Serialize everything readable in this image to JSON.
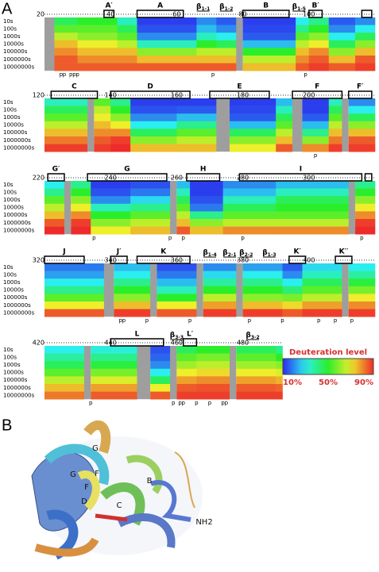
{
  "panel_a": {
    "label": "A",
    "time_points": [
      "10s",
      "100s",
      "1000s",
      "10000s",
      "100000s",
      "1000000s",
      "10000000s"
    ],
    "proline_label": "p",
    "colorbar": {
      "title": "Deuteration level",
      "lim": [
        10,
        90
      ],
      "ticks": [
        {
          "value": 10,
          "label": "10%"
        },
        {
          "value": 50,
          "label": "50%"
        },
        {
          "value": 90,
          "label": "90%"
        }
      ]
    },
    "rows": [
      {
        "xlim": [
          20,
          120
        ],
        "xticks": [
          20,
          40,
          60,
          80,
          100
        ],
        "elements": [
          {
            "label": "A′",
            "from": 38,
            "to": 41
          },
          {
            "label": "A",
            "from": 48,
            "to": 62
          },
          {
            "label": "β",
            "sub": "1-1",
            "at": 68
          },
          {
            "label": "β",
            "sub": "1-2",
            "at": 75
          },
          {
            "label": "B",
            "from": 80,
            "to": 94
          },
          {
            "label": "β",
            "sub": "1-5",
            "at": 97
          },
          {
            "label": "B′",
            "from": 100,
            "to": 104
          },
          {
            "from": 116,
            "to": 119
          }
        ],
        "segments": [
          {
            "from": 20,
            "to": 23,
            "d": null
          },
          {
            "from": 23,
            "to": 30,
            "d": [
              45,
              55,
              65,
              75,
              80,
              85,
              85
            ]
          },
          {
            "from": 30,
            "to": 42,
            "d": [
              50,
              55,
              60,
              70,
              75,
              80,
              85
            ]
          },
          {
            "from": 42,
            "to": 48,
            "d": [
              35,
              45,
              55,
              65,
              75,
              80,
              85
            ]
          },
          {
            "from": 48,
            "to": 66,
            "d": [
              12,
              14,
              20,
              35,
              60,
              75,
              85
            ]
          },
          {
            "from": 66,
            "to": 72,
            "d": [
              20,
              25,
              35,
              50,
              65,
              75,
              85
            ]
          },
          {
            "from": 72,
            "to": 78,
            "d": [
              15,
              20,
              30,
              45,
              65,
              75,
              85
            ]
          },
          {
            "from": 78,
            "to": 80,
            "d": null
          },
          {
            "from": 80,
            "to": 96,
            "d": [
              12,
              13,
              15,
              25,
              50,
              65,
              75
            ]
          },
          {
            "from": 96,
            "to": 100,
            "d": [
              30,
              40,
              55,
              65,
              75,
              80,
              85
            ]
          },
          {
            "from": 100,
            "to": 106,
            "d": [
              40,
              50,
              60,
              70,
              80,
              85,
              88
            ]
          },
          {
            "from": 106,
            "to": 114,
            "d": [
              15,
              20,
              30,
              45,
              60,
              75,
              85
            ]
          },
          {
            "from": 114,
            "to": 120,
            "d": [
              20,
              30,
              45,
              60,
              75,
              85,
              88
            ]
          }
        ],
        "prolines": [
          25,
          26,
          28,
          29,
          30,
          71,
          99
        ]
      },
      {
        "xlim": [
          120,
          220
        ],
        "xticks": [
          120,
          140,
          160,
          180,
          200
        ],
        "elements": [
          {
            "label": "C",
            "from": 122,
            "to": 136
          },
          {
            "label": "D",
            "from": 140,
            "to": 164
          },
          {
            "label": "E",
            "from": 170,
            "to": 188
          },
          {
            "label": "F",
            "from": 195,
            "to": 210
          },
          {
            "label": "F′",
            "from": 212,
            "to": 219
          }
        ],
        "segments": [
          {
            "from": 120,
            "to": 133,
            "d": [
              35,
              45,
              55,
              65,
              75,
              82,
              88
            ]
          },
          {
            "from": 133,
            "to": 135,
            "d": null
          },
          {
            "from": 135,
            "to": 140,
            "d": [
              55,
              65,
              70,
              75,
              80,
              85,
              88
            ]
          },
          {
            "from": 140,
            "to": 146,
            "d": [
              40,
              50,
              60,
              70,
              80,
              88,
              90
            ]
          },
          {
            "from": 146,
            "to": 160,
            "d": [
              12,
              14,
              20,
              30,
              45,
              60,
              75
            ]
          },
          {
            "from": 160,
            "to": 172,
            "d": [
              12,
              15,
              25,
              40,
              55,
              65,
              75
            ]
          },
          {
            "from": 172,
            "to": 176,
            "d": null
          },
          {
            "from": 176,
            "to": 190,
            "d": [
              12,
              13,
              15,
              25,
              45,
              60,
              70
            ]
          },
          {
            "from": 190,
            "to": 195,
            "d": [
              25,
              35,
              45,
              55,
              65,
              75,
              85
            ]
          },
          {
            "from": 195,
            "to": 198,
            "d": null
          },
          {
            "from": 198,
            "to": 206,
            "d": [
              12,
              12,
              15,
              25,
              40,
              60,
              80
            ]
          },
          {
            "from": 206,
            "to": 210,
            "d": [
              35,
              45,
              55,
              65,
              75,
              82,
              88
            ]
          },
          {
            "from": 210,
            "to": 212,
            "d": null
          },
          {
            "from": 212,
            "to": 220,
            "d": [
              20,
              30,
              45,
              60,
              75,
              85,
              88
            ]
          }
        ],
        "prolines": [
          202
        ]
      },
      {
        "xlim": [
          220,
          320
        ],
        "xticks": [
          220,
          240,
          260,
          280,
          300
        ],
        "elements": [
          {
            "label": "G′",
            "from": 221,
            "to": 226
          },
          {
            "label": "G",
            "from": 233,
            "to": 257
          },
          {
            "label": "H",
            "from": 263,
            "to": 273
          },
          {
            "label": "I",
            "from": 279,
            "to": 316
          },
          {
            "from": 317,
            "to": 319
          }
        ],
        "segments": [
          {
            "from": 220,
            "to": 226,
            "d": [
              30,
              40,
              55,
              65,
              75,
              85,
              90
            ]
          },
          {
            "from": 226,
            "to": 228,
            "d": null
          },
          {
            "from": 228,
            "to": 234,
            "d": [
              40,
              50,
              60,
              70,
              80,
              88,
              90
            ]
          },
          {
            "from": 234,
            "to": 246,
            "d": [
              12,
              14,
              20,
              35,
              50,
              60,
              70
            ]
          },
          {
            "from": 246,
            "to": 258,
            "d": [
              14,
              18,
              28,
              40,
              55,
              65,
              75
            ]
          },
          {
            "from": 258,
            "to": 260,
            "d": null
          },
          {
            "from": 260,
            "to": 264,
            "d": [
              25,
              35,
              45,
              55,
              65,
              75,
              85
            ]
          },
          {
            "from": 264,
            "to": 274,
            "d": [
              12,
              12,
              14,
              18,
              40,
              60,
              75
            ]
          },
          {
            "from": 274,
            "to": 290,
            "d": [
              20,
              25,
              35,
              45,
              55,
              65,
              80
            ]
          },
          {
            "from": 290,
            "to": 312,
            "d": [
              25,
              35,
              45,
              50,
              55,
              65,
              80
            ]
          },
          {
            "from": 312,
            "to": 314,
            "d": null
          },
          {
            "from": 314,
            "to": 320,
            "d": [
              40,
              50,
              60,
              70,
              80,
              88,
              90
            ]
          }
        ],
        "prolines": [
          235,
          258,
          262,
          280,
          316
        ]
      },
      {
        "xlim": [
          320,
          420
        ],
        "xticks": [
          320,
          340,
          360,
          380,
          400
        ],
        "elements": [
          {
            "label": "J",
            "from": 320,
            "to": 332
          },
          {
            "label": "J′",
            "from": 340,
            "to": 345
          },
          {
            "label": "K",
            "from": 348,
            "to": 364
          },
          {
            "label": "β",
            "sub": "1-4",
            "at": 370
          },
          {
            "label": "β",
            "sub": "2-1",
            "at": 376
          },
          {
            "label": "β",
            "sub": "2-2",
            "at": 381
          },
          {
            "label": "β",
            "sub": "1-3",
            "at": 388
          },
          {
            "label": "K′",
            "from": 394,
            "to": 399
          },
          {
            "label": "K′′",
            "from": 408,
            "to": 413
          }
        ],
        "segments": [
          {
            "from": 320,
            "to": 338,
            "d": [
              18,
              22,
              30,
              40,
              55,
              70,
              85
            ]
          },
          {
            "from": 338,
            "to": 341,
            "d": null
          },
          {
            "from": 341,
            "to": 352,
            "d": [
              25,
              30,
              40,
              50,
              60,
              75,
              88
            ]
          },
          {
            "from": 352,
            "to": 354,
            "d": null
          },
          {
            "from": 354,
            "to": 366,
            "d": [
              14,
              18,
              25,
              35,
              50,
              70,
              85
            ]
          },
          {
            "from": 366,
            "to": 368,
            "d": null
          },
          {
            "from": 368,
            "to": 378,
            "d": [
              20,
              28,
              38,
              50,
              65,
              78,
              88
            ]
          },
          {
            "from": 378,
            "to": 380,
            "d": null
          },
          {
            "from": 380,
            "to": 392,
            "d": [
              22,
              30,
              40,
              50,
              60,
              75,
              88
            ]
          },
          {
            "from": 392,
            "to": 398,
            "d": [
              15,
              20,
              30,
              42,
              58,
              72,
              85
            ]
          },
          {
            "from": 398,
            "to": 410,
            "d": [
              28,
              35,
              45,
              55,
              65,
              78,
              88
            ]
          },
          {
            "from": 410,
            "to": 412,
            "d": null
          },
          {
            "from": 412,
            "to": 420,
            "d": [
              30,
              38,
              48,
              58,
              70,
              80,
              88
            ]
          }
        ],
        "prolines": [
          343,
          344,
          351,
          364,
          382,
          392,
          403,
          408,
          413
        ]
      },
      {
        "xlim": [
          420,
          492
        ],
        "xticks": [
          420,
          440,
          460,
          480
        ],
        "elements": [
          {
            "label": "L",
            "from": 440,
            "to": 456
          },
          {
            "label": "β",
            "sub": "3-3",
            "at": 460
          },
          {
            "label": "L′",
            "from": 462,
            "to": 466
          },
          {
            "label": "β",
            "sub": "3-2",
            "at": 483
          }
        ],
        "segments": [
          {
            "from": 420,
            "to": 432,
            "d": [
              30,
              38,
              45,
              55,
              65,
              75,
              82
            ]
          },
          {
            "from": 432,
            "to": 434,
            "d": null
          },
          {
            "from": 434,
            "to": 448,
            "d": [
              32,
              40,
              48,
              58,
              68,
              78,
              85
            ]
          },
          {
            "from": 448,
            "to": 452,
            "d": null
          },
          {
            "from": 452,
            "to": 458,
            "d": [
              14,
              16,
              20,
              30,
              45,
              70,
              85
            ]
          },
          {
            "from": 458,
            "to": 460,
            "d": null
          },
          {
            "from": 460,
            "to": 466,
            "d": [
              45,
              55,
              62,
              70,
              78,
              85,
              88
            ]
          },
          {
            "from": 466,
            "to": 476,
            "d": [
              50,
              58,
              65,
              72,
              80,
              86,
              88
            ]
          },
          {
            "from": 476,
            "to": 478,
            "d": null
          },
          {
            "from": 478,
            "to": 490,
            "d": [
              45,
              55,
              62,
              70,
              78,
              85,
              88
            ]
          },
          {
            "from": 490,
            "to": 492,
            "d": [
              40,
              50,
              60,
              68,
              76,
              84,
              88
            ]
          }
        ],
        "prolines": [
          434,
          459,
          461,
          462,
          466,
          470,
          474,
          475
        ]
      }
    ]
  },
  "panel_b": {
    "label": "B",
    "labels": [
      "G",
      "G",
      "F",
      "F",
      "B",
      "C",
      "D",
      "NH2"
    ]
  }
}
